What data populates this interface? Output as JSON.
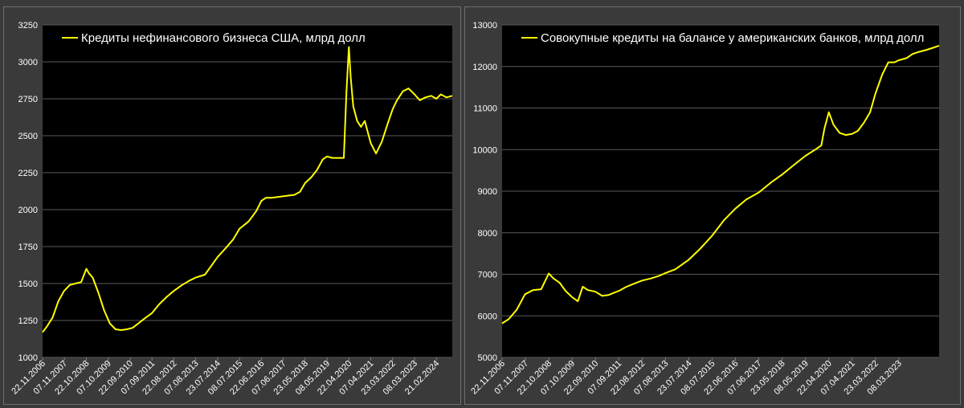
{
  "colors": {
    "background": "#3a3a3a",
    "plot_area": "#000000",
    "grid": "#5a5a5a",
    "line": "#ffff00",
    "text": "#ffffff"
  },
  "chart_data": [
    {
      "type": "line",
      "legend": "Кредиты нефинансового бизнеса США, млрд долл",
      "legend_position": "top-left",
      "grid": true,
      "ylim": [
        1000,
        3250
      ],
      "yticks": [
        "1000",
        "1250",
        "1500",
        "1750",
        "2000",
        "2250",
        "2500",
        "2750",
        "3000",
        "3250"
      ],
      "xlim": [
        "2006-11-22",
        "2024-11-01"
      ],
      "xticks": [
        "22.11.2006",
        "07.11.2007",
        "22.10.2008",
        "07.10.2009",
        "22.09.2010",
        "07.09.2011",
        "22.08.2012",
        "07.08.2013",
        "23.07.2014",
        "08.07.2015",
        "22.06.2016",
        "07.06.2017",
        "23.05.2018",
        "08.05.2019",
        "22.04.2020",
        "07.04.2021",
        "23.03.2022",
        "08.03.2023",
        "21.02.2024"
      ],
      "series": [
        {
          "x": [
            "2006-11-22",
            "2007-02-01",
            "2007-05-01",
            "2007-08-01",
            "2007-11-01",
            "2008-02-01",
            "2008-05-01",
            "2008-08-01",
            "2008-10-22",
            "2008-12-01",
            "2009-02-01",
            "2009-05-01",
            "2009-08-01",
            "2009-11-01",
            "2010-02-01",
            "2010-05-01",
            "2010-08-01",
            "2010-11-01",
            "2011-02-01",
            "2011-05-01",
            "2011-09-07",
            "2012-01-01",
            "2012-05-01",
            "2012-08-22",
            "2013-01-01",
            "2013-05-01",
            "2013-08-07",
            "2014-01-01",
            "2014-05-01",
            "2014-07-23",
            "2014-12-01",
            "2015-04-01",
            "2015-07-08",
            "2015-12-01",
            "2016-04-01",
            "2016-06-22",
            "2016-09-01",
            "2016-12-01",
            "2017-03-01",
            "2017-06-07",
            "2017-09-01",
            "2017-12-01",
            "2018-03-01",
            "2018-05-23",
            "2018-09-01",
            "2018-12-01",
            "2019-03-01",
            "2019-05-08",
            "2019-08-01",
            "2019-11-01",
            "2020-02-01",
            "2020-03-15",
            "2020-04-22",
            "2020-05-20",
            "2020-07-01",
            "2020-09-01",
            "2020-11-01",
            "2021-01-01",
            "2021-04-07",
            "2021-07-01",
            "2021-10-01",
            "2022-01-01",
            "2022-03-23",
            "2022-06-01",
            "2022-09-01",
            "2022-12-01",
            "2023-03-08",
            "2023-06-01",
            "2023-09-01",
            "2023-12-01",
            "2024-02-21",
            "2024-05-01",
            "2024-08-01",
            "2024-11-01"
          ],
          "y": [
            1170,
            1210,
            1270,
            1380,
            1450,
            1490,
            1500,
            1510,
            1600,
            1570,
            1540,
            1440,
            1320,
            1230,
            1190,
            1185,
            1190,
            1200,
            1230,
            1260,
            1300,
            1360,
            1410,
            1450,
            1490,
            1520,
            1540,
            1560,
            1630,
            1680,
            1740,
            1800,
            1870,
            1920,
            1990,
            2060,
            2080,
            2080,
            2085,
            2090,
            2095,
            2100,
            2120,
            2180,
            2220,
            2270,
            2340,
            2360,
            2350,
            2350,
            2350,
            2800,
            3100,
            2900,
            2700,
            2600,
            2560,
            2600,
            2450,
            2380,
            2460,
            2580,
            2680,
            2740,
            2800,
            2820,
            2780,
            2740,
            2760,
            2770,
            2750,
            2780,
            2760,
            2770
          ]
        }
      ]
    },
    {
      "type": "line",
      "legend": "Совокупные кредиты на балансе у американских банков, млрд долл",
      "legend_position": "top-left",
      "grid": true,
      "ylim": [
        5000,
        13000
      ],
      "yticks": [
        "5000",
        "6000",
        "7000",
        "8000",
        "9000",
        "10000",
        "11000",
        "12000",
        "13000"
      ],
      "xlim": [
        "2006-11-22",
        "2024-11-01"
      ],
      "xticks": [
        "22.11.2006",
        "07.11.2007",
        "22.10.2008",
        "07.10.2009",
        "22.09.2010",
        "07.09.2011",
        "22.08.2012",
        "07.08.2013",
        "23.07.2014",
        "08.07.2015",
        "22.06.2016",
        "07.06.2017",
        "23.05.2018",
        "08.05.2019",
        "22.04.2020",
        "07.04.2021",
        "23.03.2022",
        "08.03.2023"
      ],
      "series": [
        {
          "x": [
            "2006-11-22",
            "2007-03-01",
            "2007-07-01",
            "2007-11-01",
            "2008-03-01",
            "2008-07-01",
            "2008-10-22",
            "2009-01-01",
            "2009-04-01",
            "2009-07-01",
            "2009-10-07",
            "2010-01-01",
            "2010-03-15",
            "2010-06-01",
            "2010-09-22",
            "2011-01-01",
            "2011-04-01",
            "2011-09-07",
            "2012-01-01",
            "2012-05-01",
            "2012-08-22",
            "2013-01-01",
            "2013-05-01",
            "2013-08-07",
            "2014-01-01",
            "2014-07-23",
            "2015-01-01",
            "2015-07-08",
            "2016-01-01",
            "2016-06-22",
            "2016-12-01",
            "2017-06-07",
            "2017-12-01",
            "2018-05-23",
            "2018-12-01",
            "2019-05-08",
            "2019-10-01",
            "2020-01-01",
            "2020-02-15",
            "2020-04-22",
            "2020-07-01",
            "2020-10-01",
            "2021-01-01",
            "2021-04-07",
            "2021-07-01",
            "2021-10-01",
            "2022-01-01",
            "2022-03-23",
            "2022-07-01",
            "2022-10-01",
            "2023-01-01",
            "2023-03-08",
            "2023-07-01",
            "2023-10-01",
            "2024-01-01",
            "2024-05-01",
            "2024-08-01",
            "2024-11-01"
          ],
          "y": [
            5820,
            5920,
            6150,
            6520,
            6620,
            6640,
            7020,
            6900,
            6800,
            6600,
            6450,
            6350,
            6700,
            6620,
            6580,
            6480,
            6500,
            6600,
            6700,
            6780,
            6850,
            6900,
            6960,
            7030,
            7120,
            7350,
            7600,
            7930,
            8300,
            8580,
            8800,
            8970,
            9200,
            9400,
            9650,
            9850,
            10000,
            10100,
            10500,
            10900,
            10600,
            10400,
            10350,
            10380,
            10450,
            10650,
            10900,
            11350,
            11800,
            12100,
            12100,
            12150,
            12200,
            12300,
            12350,
            12400,
            12450,
            12500
          ]
        }
      ]
    }
  ]
}
